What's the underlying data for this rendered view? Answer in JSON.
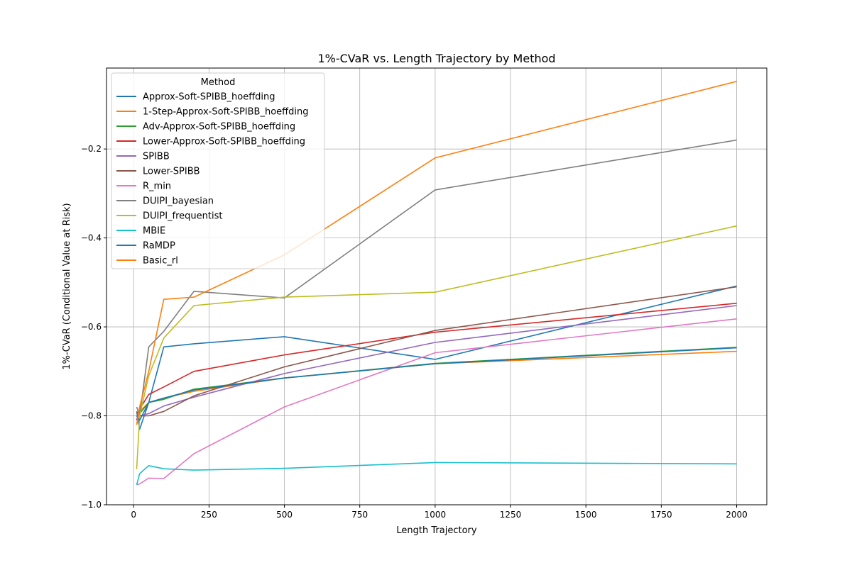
{
  "chart_data": {
    "type": "line",
    "title": "1%-CVaR vs. Length Trajectory by Method",
    "xlabel": "Length Trajectory",
    "ylabel": "1%-CVaR (Conditional Value at Risk)",
    "xlim": [
      -90,
      2100
    ],
    "ylim": [
      -1.0,
      -0.018
    ],
    "x_ticks": [
      0,
      250,
      500,
      750,
      1000,
      1250,
      1500,
      1750,
      2000
    ],
    "y_ticks": [
      -1.0,
      -0.8,
      -0.6,
      -0.4,
      -0.2
    ],
    "y_tick_labels": [
      "−1.0",
      "−0.8",
      "−0.6",
      "−0.4",
      "−0.2"
    ],
    "grid": true,
    "legend": {
      "title": "Method",
      "placement": "top-left"
    },
    "x": [
      10,
      20,
      50,
      100,
      200,
      500,
      1000,
      2000
    ],
    "series": [
      {
        "name": "Approx-Soft-SPIBB_hoeffding",
        "color": "#1f77b4",
        "values": [
          -0.79,
          -0.83,
          -0.77,
          -0.645,
          -0.638,
          -0.622,
          -0.673,
          -0.508
        ]
      },
      {
        "name": "1-Step-Approx-Soft-SPIBB_hoeffding",
        "color": "#ff7f0e",
        "values": [
          -0.82,
          -0.79,
          -0.77,
          -0.76,
          -0.745,
          -0.715,
          -0.683,
          -0.655
        ]
      },
      {
        "name": "Adv-Approx-Soft-SPIBB_hoeffding",
        "color": "#2ca02c",
        "values": [
          -0.8,
          -0.795,
          -0.77,
          -0.763,
          -0.74,
          -0.715,
          -0.682,
          -0.646
        ]
      },
      {
        "name": "Lower-Approx-Soft-SPIBB_hoeffding",
        "color": "#d62728",
        "values": [
          -0.81,
          -0.785,
          -0.752,
          -0.735,
          -0.7,
          -0.663,
          -0.612,
          -0.547
        ]
      },
      {
        "name": "SPIBB",
        "color": "#9467bd",
        "values": [
          -0.795,
          -0.8,
          -0.795,
          -0.778,
          -0.758,
          -0.705,
          -0.635,
          -0.552
        ]
      },
      {
        "name": "Lower-SPIBB",
        "color": "#8c564b",
        "values": [
          -0.79,
          -0.8,
          -0.8,
          -0.79,
          -0.755,
          -0.69,
          -0.608,
          -0.51
        ]
      },
      {
        "name": "R_min",
        "color": "#e377c2",
        "values": [
          -0.955,
          -0.953,
          -0.94,
          -0.941,
          -0.885,
          -0.78,
          -0.658,
          -0.582
        ]
      },
      {
        "name": "DUIPI_bayesian",
        "color": "#7f7f7f",
        "values": [
          -0.78,
          -0.8,
          -0.645,
          -0.61,
          -0.52,
          -0.535,
          -0.292,
          -0.18
        ]
      },
      {
        "name": "DUIPI_frequentist",
        "color": "#bcbd22",
        "values": [
          -0.92,
          -0.8,
          -0.71,
          -0.625,
          -0.552,
          -0.533,
          -0.522,
          -0.373
        ]
      },
      {
        "name": "MBIE",
        "color": "#17becf",
        "values": [
          -0.955,
          -0.93,
          -0.912,
          -0.919,
          -0.922,
          -0.918,
          -0.905,
          -0.908
        ]
      },
      {
        "name": "RaMDP",
        "color": "#1f77b4",
        "values": [
          -0.8,
          -0.81,
          -0.77,
          -0.76,
          -0.742,
          -0.715,
          -0.683,
          -0.647
        ]
      },
      {
        "name": "Basic_rl",
        "color": "#ff7f0e",
        "values": [
          -0.82,
          -0.78,
          -0.7,
          -0.538,
          -0.533,
          -0.438,
          -0.22,
          -0.048
        ]
      }
    ]
  }
}
